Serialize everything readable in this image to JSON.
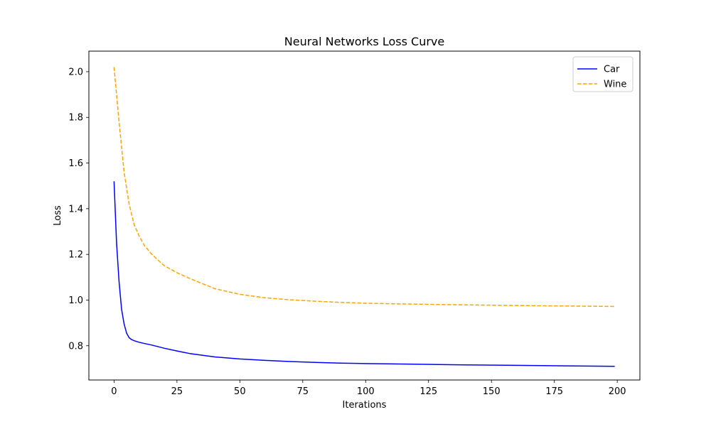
{
  "chart_data": {
    "type": "line",
    "title": "Neural Networks Loss Curve",
    "xlabel": "Iterations",
    "ylabel": "Loss",
    "xlim": [
      -10,
      209
    ],
    "ylim": [
      0.65,
      2.09
    ],
    "xticks": [
      0,
      25,
      50,
      75,
      100,
      125,
      150,
      175,
      200
    ],
    "yticks": [
      0.8,
      1.0,
      1.2,
      1.4,
      1.6,
      1.8,
      2.0
    ],
    "xtick_labels": [
      "0",
      "25",
      "50",
      "75",
      "100",
      "125",
      "150",
      "175",
      "200"
    ],
    "ytick_labels": [
      "0.8",
      "1.0",
      "1.2",
      "1.4",
      "1.6",
      "1.8",
      "2.0"
    ],
    "grid": false,
    "legend_position": "upper right",
    "series": [
      {
        "name": "Car",
        "color": "#0000ff",
        "style": "solid",
        "x": [
          0,
          1,
          2,
          3,
          4,
          5,
          6,
          7,
          8,
          10,
          12,
          15,
          20,
          25,
          30,
          40,
          50,
          60,
          70,
          80,
          90,
          100,
          120,
          140,
          160,
          180,
          199
        ],
        "y": [
          1.52,
          1.25,
          1.08,
          0.96,
          0.895,
          0.855,
          0.835,
          0.827,
          0.822,
          0.815,
          0.81,
          0.803,
          0.789,
          0.777,
          0.766,
          0.751,
          0.742,
          0.736,
          0.731,
          0.727,
          0.724,
          0.722,
          0.719,
          0.716,
          0.714,
          0.712,
          0.71
        ]
      },
      {
        "name": "Wine",
        "color": "#ffa500",
        "style": "dashed",
        "x": [
          0,
          2,
          4,
          6,
          8,
          10,
          12,
          15,
          20,
          25,
          30,
          40,
          50,
          60,
          70,
          80,
          90,
          100,
          120,
          140,
          160,
          180,
          199
        ],
        "y": [
          2.02,
          1.78,
          1.56,
          1.42,
          1.33,
          1.28,
          1.24,
          1.2,
          1.15,
          1.12,
          1.095,
          1.05,
          1.025,
          1.01,
          1.001,
          0.995,
          0.99,
          0.986,
          0.982,
          0.979,
          0.976,
          0.974,
          0.972
        ]
      }
    ]
  }
}
